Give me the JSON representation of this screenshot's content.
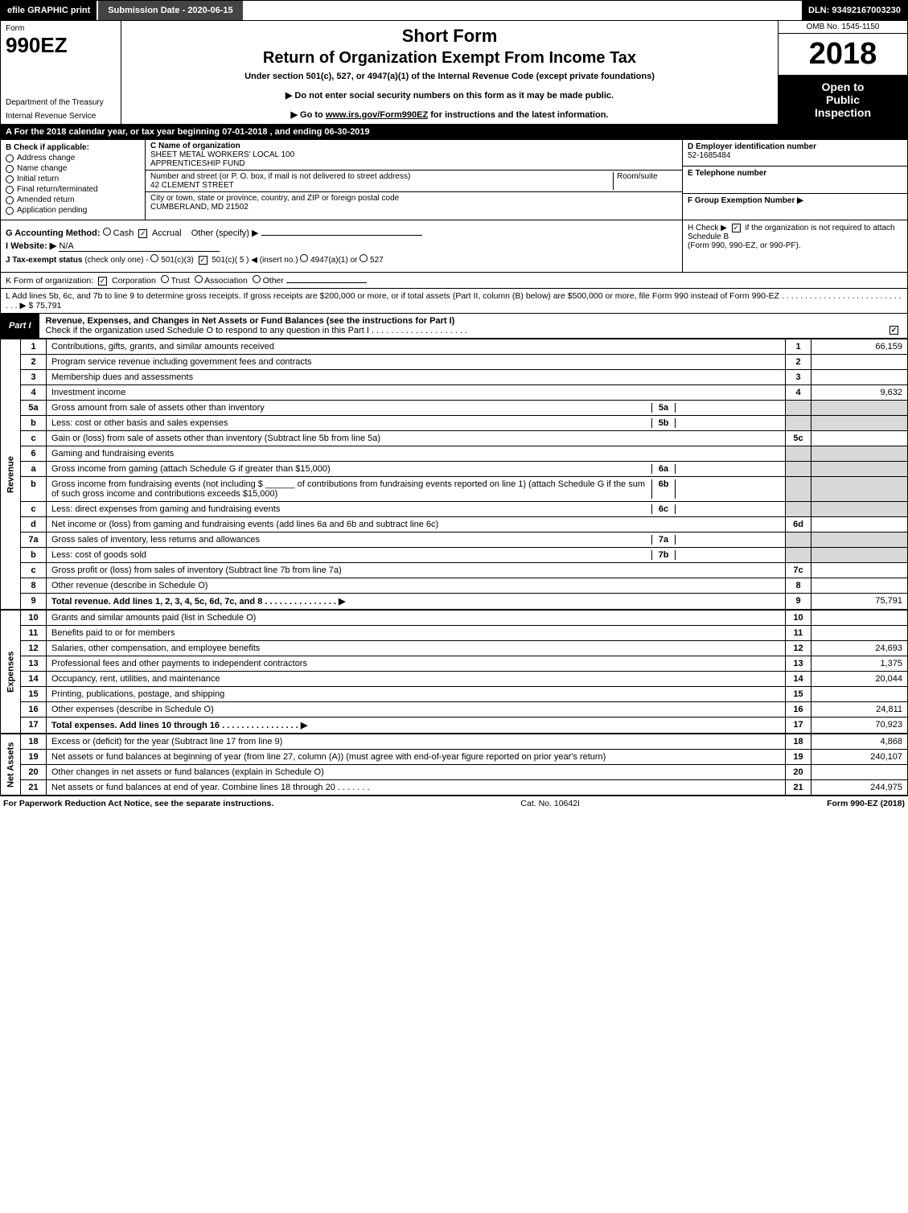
{
  "colors": {
    "black": "#000000",
    "darkgray": "#444444",
    "shade": "#d8d8d8",
    "white": "#ffffff"
  },
  "topbar": {
    "efile": "efile GRAPHIC print",
    "submission": "Submission Date - 2020-06-15",
    "dln": "DLN: 93492167003230"
  },
  "header": {
    "form_label": "Form",
    "form_number": "990EZ",
    "dept1": "Department of the Treasury",
    "dept2": "Internal Revenue Service",
    "short_form": "Short Form",
    "main_title": "Return of Organization Exempt From Income Tax",
    "subtitle": "Under section 501(c), 527, or 4947(a)(1) of the Internal Revenue Code (except private foundations)",
    "instr1": "▶ Do not enter social security numbers on this form as it may be made public.",
    "instr2_prefix": "▶ Go to ",
    "instr2_link": "www.irs.gov/Form990EZ",
    "instr2_suffix": " for instructions and the latest information.",
    "omb": "OMB No. 1545-1150",
    "year": "2018",
    "inspection1": "Open to",
    "inspection2": "Public",
    "inspection3": "Inspection"
  },
  "calendar": {
    "text_prefix": "A  For the 2018 calendar year, or tax year beginning ",
    "begin": "07-01-2018",
    "middle": " , and ending ",
    "end": "06-30-2019"
  },
  "checkboxes": {
    "heading": "B  Check if applicable:",
    "items": [
      "Address change",
      "Name change",
      "Initial return",
      "Final return/terminated",
      "Amended return",
      "Application pending"
    ]
  },
  "org": {
    "c_label": "C Name of organization",
    "name1": "SHEET METAL WORKERS' LOCAL 100",
    "name2": "APPRENTICESHIP FUND",
    "addr_label": "Number and street (or P. O. box, if mail is not delivered to street address)",
    "room_label": "Room/suite",
    "street": "42 CLEMENT STREET",
    "city_label": "City or town, state or province, country, and ZIP or foreign postal code",
    "city": "CUMBERLAND, MD  21502"
  },
  "right_block": {
    "d_label": "D Employer identification number",
    "ein": "52-1685484",
    "e_label": "E Telephone number",
    "f_label": "F Group Exemption Number  ▶"
  },
  "method": {
    "g_label": "G Accounting Method:",
    "cash": "Cash",
    "accrual": "Accrual",
    "other": "Other (specify) ▶",
    "i_label": "I Website: ▶",
    "website": "N/A",
    "j_label": "J Tax-exempt status",
    "j_note": "(check only one) -",
    "j_501c3": "501(c)(3)",
    "j_501c": "501(c)( 5 ) ◀ (insert no.)",
    "j_4947": "4947(a)(1) or",
    "j_527": "527",
    "h_text1": "H  Check ▶",
    "h_text2": "if the organization is not required to attach Schedule B",
    "h_text3": "(Form 990, 990-EZ, or 990-PF)."
  },
  "row_k": {
    "label": "K Form of organization:",
    "corp": "Corporation",
    "trust": "Trust",
    "assoc": "Association",
    "other": "Other"
  },
  "row_l": {
    "text": "L Add lines 5b, 6c, and 7b to line 9 to determine gross receipts. If gross receipts are $200,000 or more, or if total assets (Part II, column (B) below) are $500,000 or more, file Form 990 instead of Form 990-EZ .  .  .  .  .  .  .  .  .  .  .  .  .  .  .  .  .  .  .  .  .  .  .  .  .  .  .  .  . ▶ $ 75,791"
  },
  "part1": {
    "label": "Part I",
    "title": "Revenue, Expenses, and Changes in Net Assets or Fund Balances (see the instructions for Part I)",
    "check_line": "Check if the organization used Schedule O to respond to any question in this Part I .  .  .  .  .  .  .  .  .  .  .  .  .  .  .  .  .  .  .  ."
  },
  "sections": {
    "revenue": "Revenue",
    "expenses": "Expenses",
    "netassets": "Net Assets"
  },
  "lines": [
    {
      "n": "1",
      "desc": "Contributions, gifts, grants, and similar amounts received",
      "ref": "1",
      "val": "66,159"
    },
    {
      "n": "2",
      "desc": "Program service revenue including government fees and contracts",
      "ref": "2",
      "val": ""
    },
    {
      "n": "3",
      "desc": "Membership dues and assessments",
      "ref": "3",
      "val": ""
    },
    {
      "n": "4",
      "desc": "Investment income",
      "ref": "4",
      "val": "9,632"
    },
    {
      "n": "5a",
      "desc": "Gross amount from sale of assets other than inventory",
      "sub": "5a",
      "shade": true
    },
    {
      "n": "b",
      "desc": "Less: cost or other basis and sales expenses",
      "sub": "5b",
      "shade": true
    },
    {
      "n": "c",
      "desc": "Gain or (loss) from sale of assets other than inventory (Subtract line 5b from line 5a)",
      "ref": "5c",
      "val": ""
    },
    {
      "n": "6",
      "desc": "Gaming and fundraising events",
      "shade": true
    },
    {
      "n": "a",
      "desc": "Gross income from gaming (attach Schedule G if greater than $15,000)",
      "sub": "6a",
      "shade": true
    },
    {
      "n": "b",
      "desc": "Gross income from fundraising events (not including $ ______ of contributions from fundraising events reported on line 1) (attach Schedule G if the sum of such gross income and contributions exceeds $15,000)",
      "sub": "6b",
      "shade": true
    },
    {
      "n": "c",
      "desc": "Less: direct expenses from gaming and fundraising events",
      "sub": "6c",
      "shade": true
    },
    {
      "n": "d",
      "desc": "Net income or (loss) from gaming and fundraising events (add lines 6a and 6b and subtract line 6c)",
      "ref": "6d",
      "val": ""
    },
    {
      "n": "7a",
      "desc": "Gross sales of inventory, less returns and allowances",
      "sub": "7a",
      "shade": true
    },
    {
      "n": "b",
      "desc": "Less: cost of goods sold",
      "sub": "7b",
      "shade": true
    },
    {
      "n": "c",
      "desc": "Gross profit or (loss) from sales of inventory (Subtract line 7b from line 7a)",
      "ref": "7c",
      "val": ""
    },
    {
      "n": "8",
      "desc": "Other revenue (describe in Schedule O)",
      "ref": "8",
      "val": ""
    },
    {
      "n": "9",
      "desc": "Total revenue. Add lines 1, 2, 3, 4, 5c, 6d, 7c, and 8  .  .  .  .  .  .  .  .  .  .  .  .  .  .  . ▶",
      "ref": "9",
      "val": "75,791",
      "bold": true
    }
  ],
  "expense_lines": [
    {
      "n": "10",
      "desc": "Grants and similar amounts paid (list in Schedule O)",
      "ref": "10",
      "val": ""
    },
    {
      "n": "11",
      "desc": "Benefits paid to or for members",
      "ref": "11",
      "val": ""
    },
    {
      "n": "12",
      "desc": "Salaries, other compensation, and employee benefits",
      "ref": "12",
      "val": "24,693"
    },
    {
      "n": "13",
      "desc": "Professional fees and other payments to independent contractors",
      "ref": "13",
      "val": "1,375"
    },
    {
      "n": "14",
      "desc": "Occupancy, rent, utilities, and maintenance",
      "ref": "14",
      "val": "20,044"
    },
    {
      "n": "15",
      "desc": "Printing, publications, postage, and shipping",
      "ref": "15",
      "val": ""
    },
    {
      "n": "16",
      "desc": "Other expenses (describe in Schedule O)",
      "ref": "16",
      "val": "24,811"
    },
    {
      "n": "17",
      "desc": "Total expenses. Add lines 10 through 16  .  .  .  .  .  .  .  .  .  .  .  .  .  .  .  . ▶",
      "ref": "17",
      "val": "70,923",
      "bold": true
    }
  ],
  "net_lines": [
    {
      "n": "18",
      "desc": "Excess or (deficit) for the year (Subtract line 17 from line 9)",
      "ref": "18",
      "val": "4,868"
    },
    {
      "n": "19",
      "desc": "Net assets or fund balances at beginning of year (from line 27, column (A)) (must agree with end-of-year figure reported on prior year's return)",
      "ref": "19",
      "val": "240,107"
    },
    {
      "n": "20",
      "desc": "Other changes in net assets or fund balances (explain in Schedule O)",
      "ref": "20",
      "val": ""
    },
    {
      "n": "21",
      "desc": "Net assets or fund balances at end of year. Combine lines 18 through 20  .  .  .  .  .  .  .",
      "ref": "21",
      "val": "244,975"
    }
  ],
  "footer": {
    "left": "For Paperwork Reduction Act Notice, see the separate instructions.",
    "center": "Cat. No. 10642I",
    "right": "Form 990-EZ (2018)"
  }
}
